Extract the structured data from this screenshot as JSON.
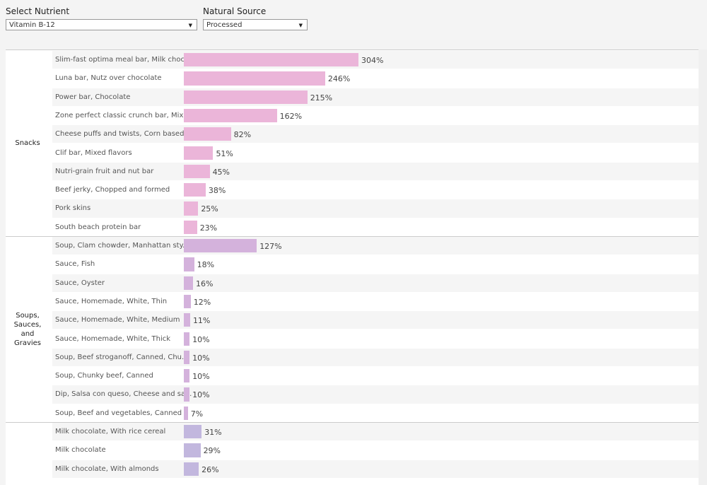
{
  "filters": [
    {
      "label": "Select Nutrient",
      "selected": "Vitamin B-12"
    },
    {
      "label": "Natural Source",
      "selected": "Processed"
    }
  ],
  "groups": [
    {
      "name": "Snacks",
      "color": "#ebb5d9",
      "items": [
        "Slim-fast optima meal bar, Milk choc..",
        "Luna bar, Nutz over chocolate",
        "Power bar, Chocolate",
        "Zone perfect classic crunch bar, Mix..",
        "Cheese puffs and twists, Corn based..",
        "Clif bar, Mixed flavors",
        "Nutri-grain fruit and nut bar",
        "Beef jerky, Chopped and formed",
        "Pork skins",
        "South beach protein bar"
      ],
      "values": [
        304,
        246,
        215,
        162,
        82,
        51,
        45,
        38,
        25,
        23
      ],
      "value_labels": [
        "304%",
        "246%",
        "215%",
        "162%",
        "82%",
        "51%",
        "45%",
        "38%",
        "25%",
        "23%"
      ]
    },
    {
      "name": "Soups, Sauces, and Gravies",
      "color": "#d4b2dc",
      "items": [
        "Soup, Clam chowder, Manhattan sty..",
        "Sauce, Fish",
        "Sauce, Oyster",
        "Sauce, Homemade, White, Thin",
        "Sauce, Homemade, White, Medium",
        "Sauce, Homemade, White, Thick",
        "Soup, Beef stroganoff, Canned, Chu..",
        "Soup, Chunky beef, Canned",
        "Dip, Salsa con queso, Cheese and sal..",
        "Soup, Beef and vegetables, Canned"
      ],
      "values": [
        127,
        18,
        16,
        12,
        11,
        10,
        10,
        10,
        10,
        7
      ],
      "value_labels": [
        "127%",
        "18%",
        "16%",
        "12%",
        "11%",
        "10%",
        "10%",
        "10%",
        "10%",
        "7%"
      ]
    },
    {
      "color": "#c2b7de",
      "items": [
        "Milk chocolate, With rice cereal",
        "Milk chocolate",
        "Milk chocolate, With almonds"
      ],
      "values": [
        31,
        29,
        26
      ],
      "value_labels": [
        "31%",
        "29%",
        "26%"
      ]
    }
  ]
}
